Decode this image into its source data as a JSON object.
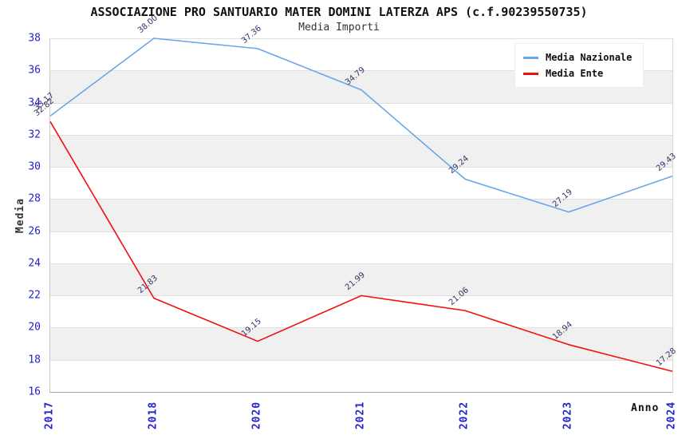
{
  "chart_data": {
    "type": "line",
    "title": "ASSOCIAZIONE PRO SANTUARIO MATER DOMINI LATERZA APS (c.f.90239550735)",
    "subtitle": "Media Importi",
    "xlabel": "Anno",
    "ylabel": "Media",
    "categories": [
      "2017",
      "2018",
      "2020",
      "2021",
      "2022",
      "2023",
      "2024"
    ],
    "series": [
      {
        "name": "Media Nazionale",
        "color": "#6CA6E8",
        "values": [
          33.17,
          38.0,
          37.36,
          34.79,
          29.24,
          27.19,
          29.43
        ]
      },
      {
        "name": "Media Ente",
        "color": "#F20F0F",
        "values": [
          32.82,
          21.83,
          19.15,
          21.99,
          21.06,
          18.94,
          17.28
        ]
      }
    ],
    "ylim": [
      16,
      38
    ],
    "ytick_step": 2,
    "legend_position": "top-right",
    "grid": "horizontal-bands",
    "colors": {
      "tick_label": "#2222CC",
      "data_label": "#333366",
      "band_alt": "#F0F0F0",
      "gridline": "#E0E0E0",
      "background": "#FFFFFF"
    }
  }
}
